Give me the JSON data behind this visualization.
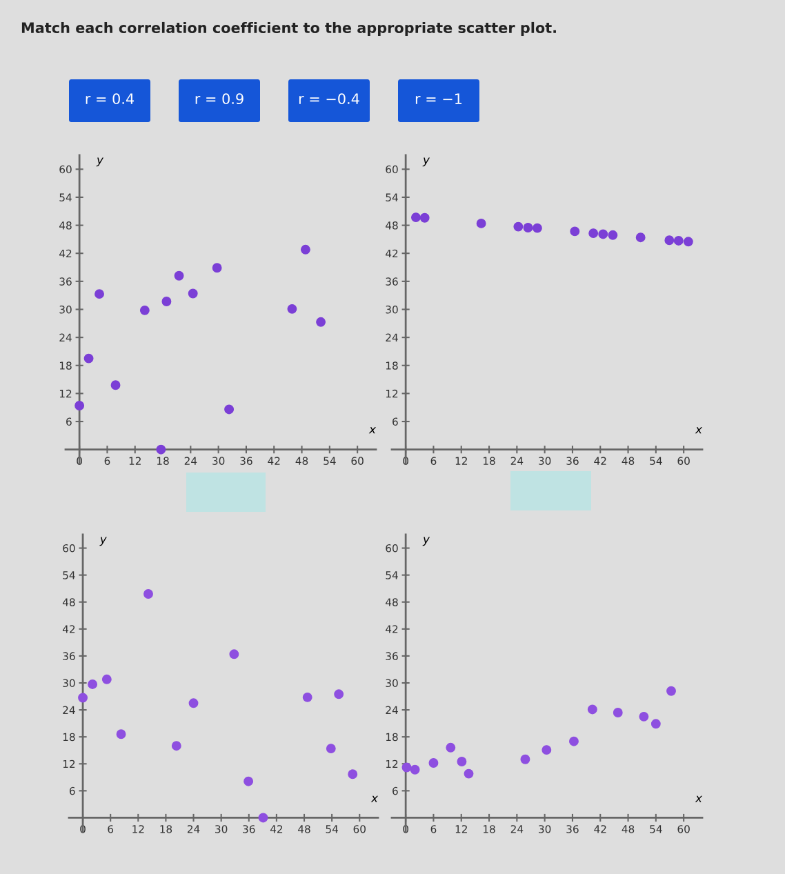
{
  "chart_data": [
    {
      "type": "other",
      "title": "Match each correlation coefficient to the appropriate scatter plot.",
      "annotations": [
        "r = 0.4",
        "r = 0.9",
        "r = −0.4",
        "r = −1"
      ],
      "color": "#1556d8"
    },
    {
      "type": "scatter",
      "xlabel": "x",
      "ylabel": "y",
      "xlim": [
        -3,
        64
      ],
      "ylim": [
        -3,
        63
      ],
      "xticks": [
        0,
        6,
        12,
        18,
        24,
        30,
        36,
        42,
        48,
        54,
        60
      ],
      "yticks": [
        6,
        12,
        18,
        24,
        30,
        36,
        42,
        48,
        54,
        60
      ],
      "marker": "circle",
      "grid": false,
      "series": [
        {
          "color": "#7b3fd6",
          "x": [
            0,
            2,
            4.3,
            7.8,
            14.1,
            18.8,
            21.5,
            24.5,
            29.7,
            32.3,
            17.6,
            45.9,
            48.8,
            52.1
          ],
          "values": [
            9.4,
            19.5,
            33.3,
            13.8,
            29.8,
            31.7,
            37.2,
            33.4,
            38.9,
            8.6,
            0,
            30.1,
            42.8,
            27.3
          ]
        }
      ]
    },
    {
      "type": "scatter",
      "xlabel": "x",
      "ylabel": "y",
      "xlim": [
        -3,
        64
      ],
      "ylim": [
        -3,
        63
      ],
      "xticks": [
        0,
        6,
        12,
        18,
        24,
        30,
        36,
        42,
        48,
        54,
        60
      ],
      "yticks": [
        6,
        12,
        18,
        24,
        30,
        36,
        42,
        48,
        54,
        60
      ],
      "marker": "circle",
      "grid": false,
      "series": [
        {
          "color": "#7b3fd6",
          "x": [
            2.2,
            4.1,
            16.3,
            24.3,
            26.4,
            28.4,
            36.5,
            40.5,
            42.6,
            44.7,
            50.7,
            56.9,
            58.9,
            61
          ],
          "values": [
            49.7,
            49.6,
            48.4,
            47.7,
            47.5,
            47.4,
            46.7,
            46.3,
            46.1,
            45.9,
            45.4,
            44.8,
            44.7,
            44.5
          ]
        }
      ]
    },
    {
      "type": "scatter",
      "xlabel": "x",
      "ylabel": "y",
      "xlim": [
        -3,
        64
      ],
      "ylim": [
        -3,
        63
      ],
      "xticks": [
        0,
        6,
        12,
        18,
        24,
        30,
        36,
        42,
        48,
        54,
        60
      ],
      "yticks": [
        6,
        12,
        18,
        24,
        30,
        36,
        42,
        48,
        54,
        60
      ],
      "marker": "circle",
      "grid": false,
      "series": [
        {
          "color": "#8e4fe0",
          "x": [
            0,
            2.1,
            5.2,
            8.3,
            14.2,
            20.3,
            24,
            32.8,
            35.9,
            39.1,
            48.7,
            55.5,
            53.8,
            58.5
          ],
          "values": [
            26.7,
            29.7,
            30.8,
            18.6,
            49.8,
            16,
            25.5,
            36.4,
            8.1,
            0,
            26.8,
            27.5,
            15.4,
            9.7
          ]
        }
      ]
    },
    {
      "type": "scatter",
      "xlabel": "x",
      "ylabel": "y",
      "xlim": [
        -3,
        64
      ],
      "ylim": [
        -3,
        63
      ],
      "xticks": [
        0,
        6,
        12,
        18,
        24,
        30,
        36,
        42,
        48,
        54,
        60
      ],
      "yticks": [
        6,
        12,
        18,
        24,
        30,
        36,
        42,
        48,
        54,
        60
      ],
      "marker": "circle",
      "grid": false,
      "series": [
        {
          "color": "#8e4fe0",
          "x": [
            0.2,
            2,
            6,
            9.7,
            12.1,
            13.6,
            25.8,
            30.4,
            36.3,
            40.3,
            45.8,
            51.4,
            54,
            57.3
          ],
          "values": [
            11.2,
            10.7,
            12.2,
            15.6,
            12.5,
            9.8,
            13,
            15.1,
            17,
            24.1,
            23.4,
            22.5,
            20.9,
            28.2
          ]
        }
      ]
    }
  ]
}
